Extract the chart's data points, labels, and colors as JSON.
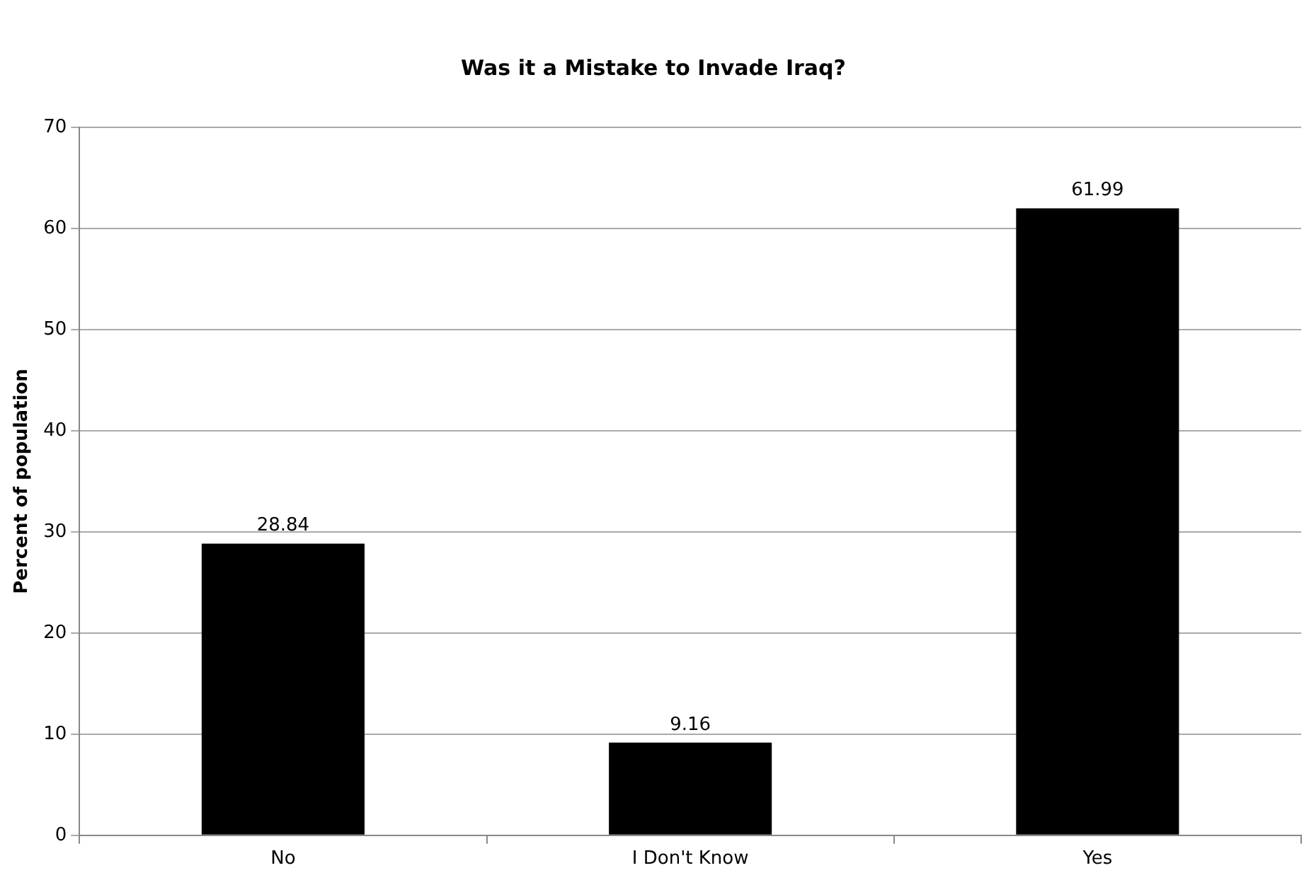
{
  "chart_data": {
    "type": "bar",
    "title": "Was it a Mistake to Invade Iraq?",
    "ylabel": "Percent of population",
    "categories": [
      "No",
      "I Don't Know",
      "Yes"
    ],
    "values": [
      28.84,
      9.16,
      61.99
    ],
    "color": "#000000",
    "ylim": [
      0,
      70
    ],
    "yticks": [
      0,
      10,
      20,
      30,
      40,
      50,
      60,
      70
    ],
    "grid": "y",
    "data_labels": true
  }
}
